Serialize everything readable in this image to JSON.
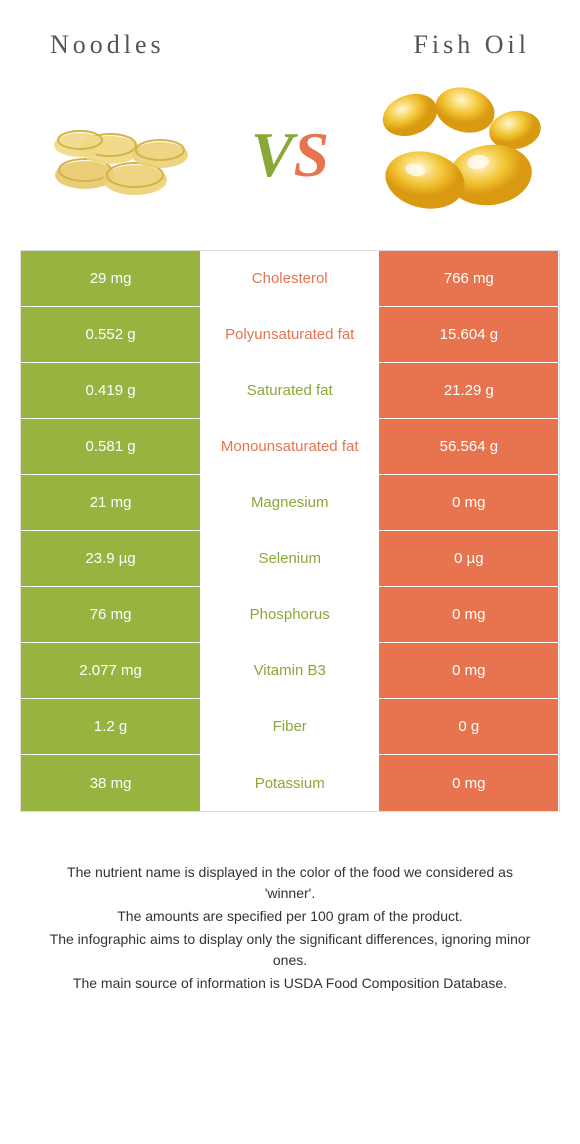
{
  "colors": {
    "green": "#97b441",
    "orange": "#e8744f",
    "mid_green_text": "#8aa83a",
    "mid_orange_text": "#e8744f"
  },
  "header": {
    "left_title": "Noodles",
    "right_title": "Fish Oil"
  },
  "vs": {
    "v": "V",
    "s": "S"
  },
  "rows": [
    {
      "left": "29 mg",
      "label": "Cholesterol",
      "right": "766 mg",
      "winner": "right"
    },
    {
      "left": "0.552 g",
      "label": "Polyunsaturated fat",
      "right": "15.604 g",
      "winner": "right"
    },
    {
      "left": "0.419 g",
      "label": "Saturated fat",
      "right": "21.29 g",
      "winner": "left"
    },
    {
      "left": "0.581 g",
      "label": "Monounsaturated fat",
      "right": "56.564 g",
      "winner": "right"
    },
    {
      "left": "21 mg",
      "label": "Magnesium",
      "right": "0 mg",
      "winner": "left"
    },
    {
      "left": "23.9 µg",
      "label": "Selenium",
      "right": "0 µg",
      "winner": "left"
    },
    {
      "left": "76 mg",
      "label": "Phosphorus",
      "right": "0 mg",
      "winner": "left"
    },
    {
      "left": "2.077 mg",
      "label": "Vitamin B3",
      "right": "0 mg",
      "winner": "left"
    },
    {
      "left": "1.2 g",
      "label": "Fiber",
      "right": "0 g",
      "winner": "left"
    },
    {
      "left": "38 mg",
      "label": "Potassium",
      "right": "0 mg",
      "winner": "left"
    }
  ],
  "footnote": {
    "line1": "The nutrient name is displayed in the color of the food we considered as 'winner'.",
    "line2": "The amounts are specified per 100 gram of the product.",
    "line3": "The infographic aims to display only the significant differences, ignoring minor ones.",
    "line4": "The main source of information is USDA Food Composition Database."
  }
}
